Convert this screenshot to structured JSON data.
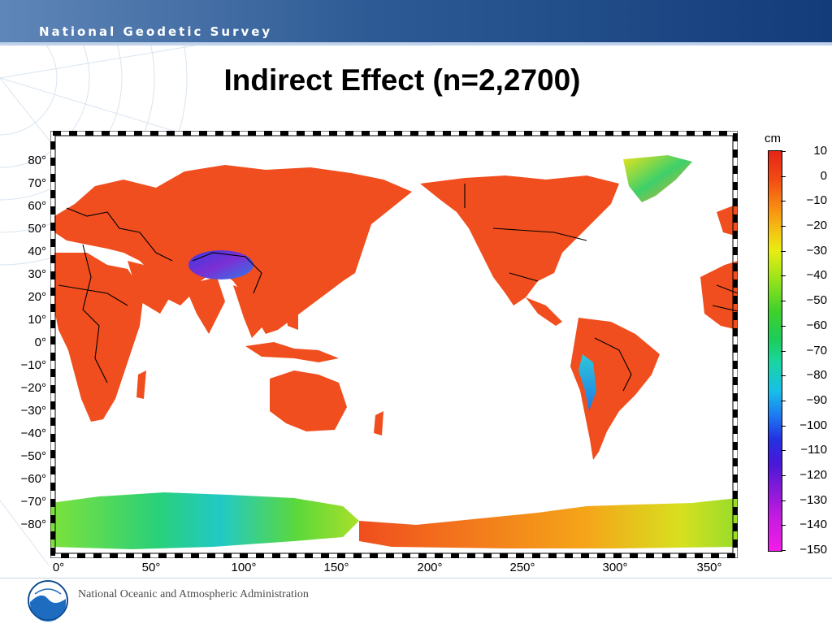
{
  "header": {
    "agency": "National Geodetic Survey"
  },
  "slide": {
    "title": "Indirect Effect (n=2,2700)"
  },
  "map": {
    "projection": "equirectangular",
    "lon_range": [
      0,
      360
    ],
    "lat_range": [
      -90,
      90
    ],
    "lat_ticks": [
      "80°",
      "70°",
      "60°",
      "50°",
      "40°",
      "30°",
      "20°",
      "10°",
      "0°",
      "−10°",
      "−20°",
      "−30°",
      "−40°",
      "−50°",
      "−60°",
      "−70°",
      "−80°"
    ],
    "lon_ticks": [
      "0°",
      "50°",
      "100°",
      "150°",
      "200°",
      "250°",
      "300°",
      "350°"
    ],
    "ocean_color": "#ffffff",
    "land_base_color": "#f04e1e"
  },
  "colorbar": {
    "unit": "cm",
    "labels": [
      "10",
      "0",
      "−10",
      "−20",
      "−30",
      "−40",
      "−50",
      "−60",
      "−70",
      "−80",
      "−90",
      "−100",
      "−110",
      "−120",
      "−130",
      "−140",
      "−150"
    ],
    "range": [
      -150,
      10
    ]
  },
  "footer": {
    "org": "National Oceanic and Atmospheric Administration",
    "logo": "noaa-logo"
  }
}
